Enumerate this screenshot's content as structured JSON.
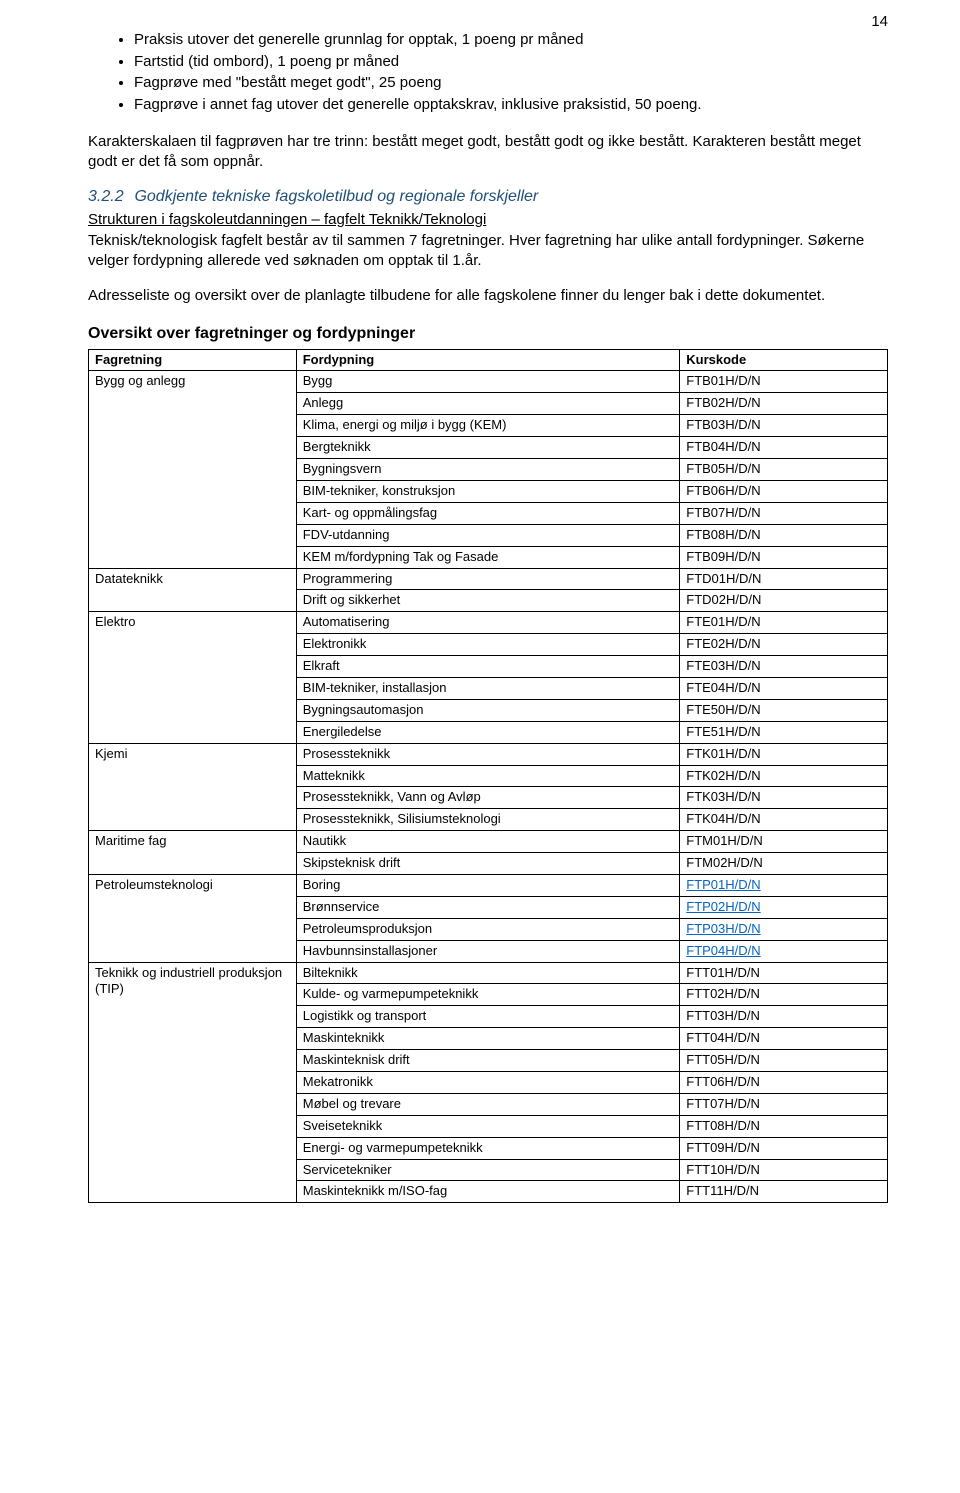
{
  "page_number": "14",
  "bullets": {
    "b1": "Praksis utover det generelle grunnlag for opptak, 1 poeng pr måned",
    "b2": "Fartstid (tid ombord), 1 poeng pr måned",
    "b3": "Fagprøve med \"bestått meget godt\", 25 poeng",
    "b4": "Fagprøve i annet fag utover det generelle opptakskrav, inklusive praksistid, 50 poeng."
  },
  "para1": "Karakterskalaen til fagprøven har tre trinn: bestått meget godt, bestått godt og ikke bestått. Karakteren bestått meget godt er det få som oppnår.",
  "section": {
    "num": "3.2.2",
    "title": "Godkjente tekniske fagskoletilbud og regionale forskjeller"
  },
  "struct_heading": "Strukturen i fagskoleutdanningen – fagfelt Teknikk/Teknologi",
  "para2": "Teknisk/teknologisk fagfelt består av til sammen 7 fagretninger. Hver fagretning har ulike antall fordypninger. Søkerne velger fordypning allerede ved søknaden om opptak til 1.år.",
  "para3": "Adresseliste og oversikt over de planlagte tilbudene for alle fagskolene finner du lenger bak i dette dokumentet.",
  "overview_title": "Oversikt over fagretninger og fordypninger",
  "table": {
    "headers": {
      "h1": "Fagretning",
      "h2": "Fordypning",
      "h3": "Kurskode"
    },
    "rows": [
      {
        "cat": "Bygg og anlegg",
        "sub": "Bygg",
        "code": "FTB01H/D/N",
        "link": false
      },
      {
        "cat": "",
        "sub": "Anlegg",
        "code": "FTB02H/D/N",
        "link": false
      },
      {
        "cat": "",
        "sub": "Klima, energi og miljø i bygg (KEM)",
        "code": "FTB03H/D/N",
        "link": false
      },
      {
        "cat": "",
        "sub": "Bergteknikk",
        "code": "FTB04H/D/N",
        "link": false
      },
      {
        "cat": "",
        "sub": "Bygningsvern",
        "code": "FTB05H/D/N",
        "link": false
      },
      {
        "cat": "",
        "sub": "BIM-tekniker, konstruksjon",
        "code": "FTB06H/D/N",
        "link": false
      },
      {
        "cat": "",
        "sub": "Kart- og oppmålingsfag",
        "code": "FTB07H/D/N",
        "link": false
      },
      {
        "cat": "",
        "sub": "FDV-utdanning",
        "code": "FTB08H/D/N",
        "link": false
      },
      {
        "cat": "",
        "sub": "KEM m/fordypning Tak og Fasade",
        "code": "FTB09H/D/N",
        "link": false
      },
      {
        "cat": "Datateknikk",
        "sub": "Programmering",
        "code": "FTD01H/D/N",
        "link": false
      },
      {
        "cat": "",
        "sub": "Drift og sikkerhet",
        "code": "FTD02H/D/N",
        "link": false
      },
      {
        "cat": "Elektro",
        "sub": "Automatisering",
        "code": "FTE01H/D/N",
        "link": false
      },
      {
        "cat": "",
        "sub": "Elektronikk",
        "code": "FTE02H/D/N",
        "link": false
      },
      {
        "cat": "",
        "sub": "Elkraft",
        "code": "FTE03H/D/N",
        "link": false
      },
      {
        "cat": "",
        "sub": "BIM-tekniker, installasjon",
        "code": "FTE04H/D/N",
        "link": false
      },
      {
        "cat": "",
        "sub": "Bygningsautomasjon",
        "code": "FTE50H/D/N",
        "link": false
      },
      {
        "cat": "",
        "sub": "Energiledelse",
        "code": "FTE51H/D/N",
        "link": false
      },
      {
        "cat": "Kjemi",
        "sub": "Prosessteknikk",
        "code": "FTK01H/D/N",
        "link": false
      },
      {
        "cat": "",
        "sub": "Matteknikk",
        "code": "FTK02H/D/N",
        "link": false
      },
      {
        "cat": "",
        "sub": "Prosessteknikk, Vann og Avløp",
        "code": "FTK03H/D/N",
        "link": false
      },
      {
        "cat": "",
        "sub": "Prosessteknikk, Silisiumsteknologi",
        "code": "FTK04H/D/N",
        "link": false
      },
      {
        "cat": "Maritime fag",
        "sub": "Nautikk",
        "code": "FTM01H/D/N",
        "link": false
      },
      {
        "cat": "",
        "sub": "Skipsteknisk drift",
        "code": "FTM02H/D/N",
        "link": false
      },
      {
        "cat": "Petroleumsteknologi",
        "sub": "Boring",
        "code": "FTP01H/D/N",
        "link": true
      },
      {
        "cat": "",
        "sub": "Brønnservice",
        "code": "FTP02H/D/N",
        "link": true
      },
      {
        "cat": "",
        "sub": "Petroleumsproduksjon",
        "code": "FTP03H/D/N",
        "link": true
      },
      {
        "cat": "",
        "sub": "Havbunnsinstallasjoner",
        "code": "FTP04H/D/N",
        "link": true
      },
      {
        "cat": "Teknikk og industriell produksjon (TIP)",
        "sub": "Bilteknikk",
        "code": "FTT01H/D/N",
        "link": false
      },
      {
        "cat": "",
        "sub": "Kulde- og varmepumpeteknikk",
        "code": "FTT02H/D/N",
        "link": false
      },
      {
        "cat": "",
        "sub": "Logistikk og transport",
        "code": "FTT03H/D/N",
        "link": false
      },
      {
        "cat": "",
        "sub": "Maskinteknikk",
        "code": "FTT04H/D/N",
        "link": false
      },
      {
        "cat": "",
        "sub": "Maskinteknisk drift",
        "code": "FTT05H/D/N",
        "link": false
      },
      {
        "cat": "",
        "sub": "Mekatronikk",
        "code": "FTT06H/D/N",
        "link": false
      },
      {
        "cat": "",
        "sub": "Møbel og trevare",
        "code": "FTT07H/D/N",
        "link": false
      },
      {
        "cat": "",
        "sub": "Sveiseteknikk",
        "code": "FTT08H/D/N",
        "link": false
      },
      {
        "cat": "",
        "sub": "Energi- og varmepumpeteknikk",
        "code": "FTT09H/D/N",
        "link": false
      },
      {
        "cat": "",
        "sub": "Servicetekniker",
        "code": "FTT10H/D/N",
        "link": false
      },
      {
        "cat": "",
        "sub": "Maskinteknikk m/ISO-fag",
        "code": "FTT11H/D/N",
        "link": false
      }
    ]
  }
}
